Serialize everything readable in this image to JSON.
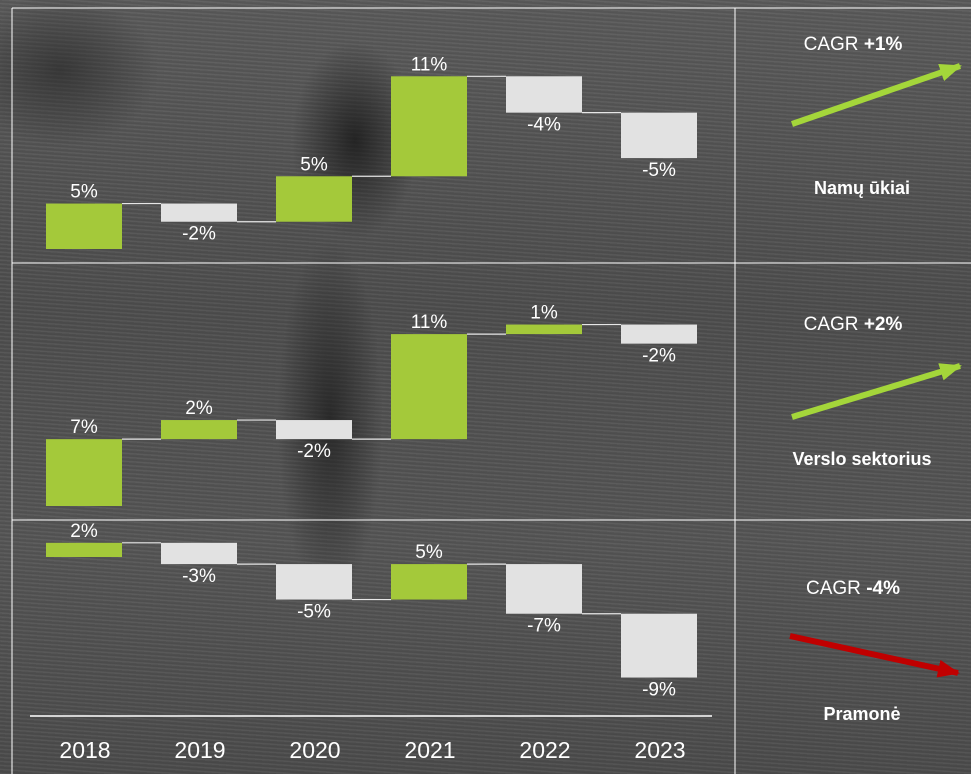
{
  "chart_data": {
    "type": "waterfall",
    "categories": [
      "2018",
      "2019",
      "2020",
      "2021",
      "2022",
      "2023"
    ],
    "panels": [
      {
        "title": "Namų ūkiai",
        "values": [
          5,
          -2,
          5,
          11,
          -4,
          -5
        ],
        "labels": [
          "5%",
          "-2%",
          "5%",
          "11%",
          "-4%",
          "-5%"
        ],
        "cagr_prefix": "CAGR",
        "cagr_value": "+1%",
        "trend": "up"
      },
      {
        "title": "Verslo sektorius",
        "values": [
          7,
          2,
          -2,
          11,
          1,
          -2
        ],
        "labels": [
          "7%",
          "2%",
          "-2%",
          "11%",
          "1%",
          "-2%"
        ],
        "cagr_prefix": "CAGR",
        "cagr_value": "+2%",
        "trend": "up"
      },
      {
        "title": "Pramonė",
        "values": [
          2,
          -3,
          -5,
          5,
          -7,
          -9
        ],
        "labels": [
          "2%",
          "-3%",
          "-5%",
          "5%",
          "-7%",
          "-9%"
        ],
        "cagr_prefix": "CAGR",
        "cagr_value": "-4%",
        "trend": "down"
      }
    ],
    "colors": {
      "positive": "#A4C93A",
      "negative": "#E2E2E2",
      "arrow_up": "#A4D63A",
      "arrow_down": "#C00000",
      "text": "#FFFFFF",
      "connector": "#E6E6E6",
      "grid": "#FFFFFF"
    }
  }
}
